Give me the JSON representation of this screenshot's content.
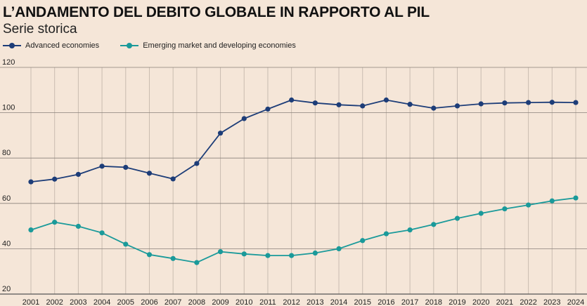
{
  "chart_data": {
    "type": "line",
    "title": "L’ANDAMENTO DEL DEBITO GLOBALE IN RAPPORTO AL PIL",
    "subtitle": "Serie storica",
    "xlabel": "",
    "ylabel": "",
    "ylim": [
      20,
      120
    ],
    "yticks": [
      20,
      40,
      60,
      80,
      100,
      120
    ],
    "grid": true,
    "legend_position": "top-left",
    "categories": [
      "2001",
      "2002",
      "2003",
      "2004",
      "2005",
      "2006",
      "2007",
      "2008",
      "2009",
      "2010",
      "2011",
      "2012",
      "2013",
      "2014",
      "2015",
      "2016",
      "2017",
      "2018",
      "2019",
      "2020",
      "2021",
      "2022",
      "2023",
      "2024"
    ],
    "series": [
      {
        "name": "Advanced economies",
        "color": "#1d3d78",
        "values": [
          69.5,
          70.7,
          72.8,
          76.4,
          75.9,
          73.3,
          70.8,
          77.6,
          91.0,
          97.4,
          101.6,
          105.6,
          104.3,
          103.5,
          103.0,
          105.6,
          103.7,
          102.0,
          103.0,
          103.9,
          104.3,
          104.5,
          104.6,
          104.5
        ]
      },
      {
        "name": "Emerging market and developing economies",
        "color": "#1a9a9a",
        "values": [
          48.3,
          51.7,
          49.9,
          47.0,
          42.0,
          37.4,
          35.7,
          33.9,
          38.7,
          37.7,
          37.0,
          37.0,
          38.1,
          40.0,
          43.6,
          46.6,
          48.3,
          50.7,
          53.4,
          55.6,
          57.6,
          59.3,
          61.1,
          62.4
        ]
      }
    ]
  }
}
